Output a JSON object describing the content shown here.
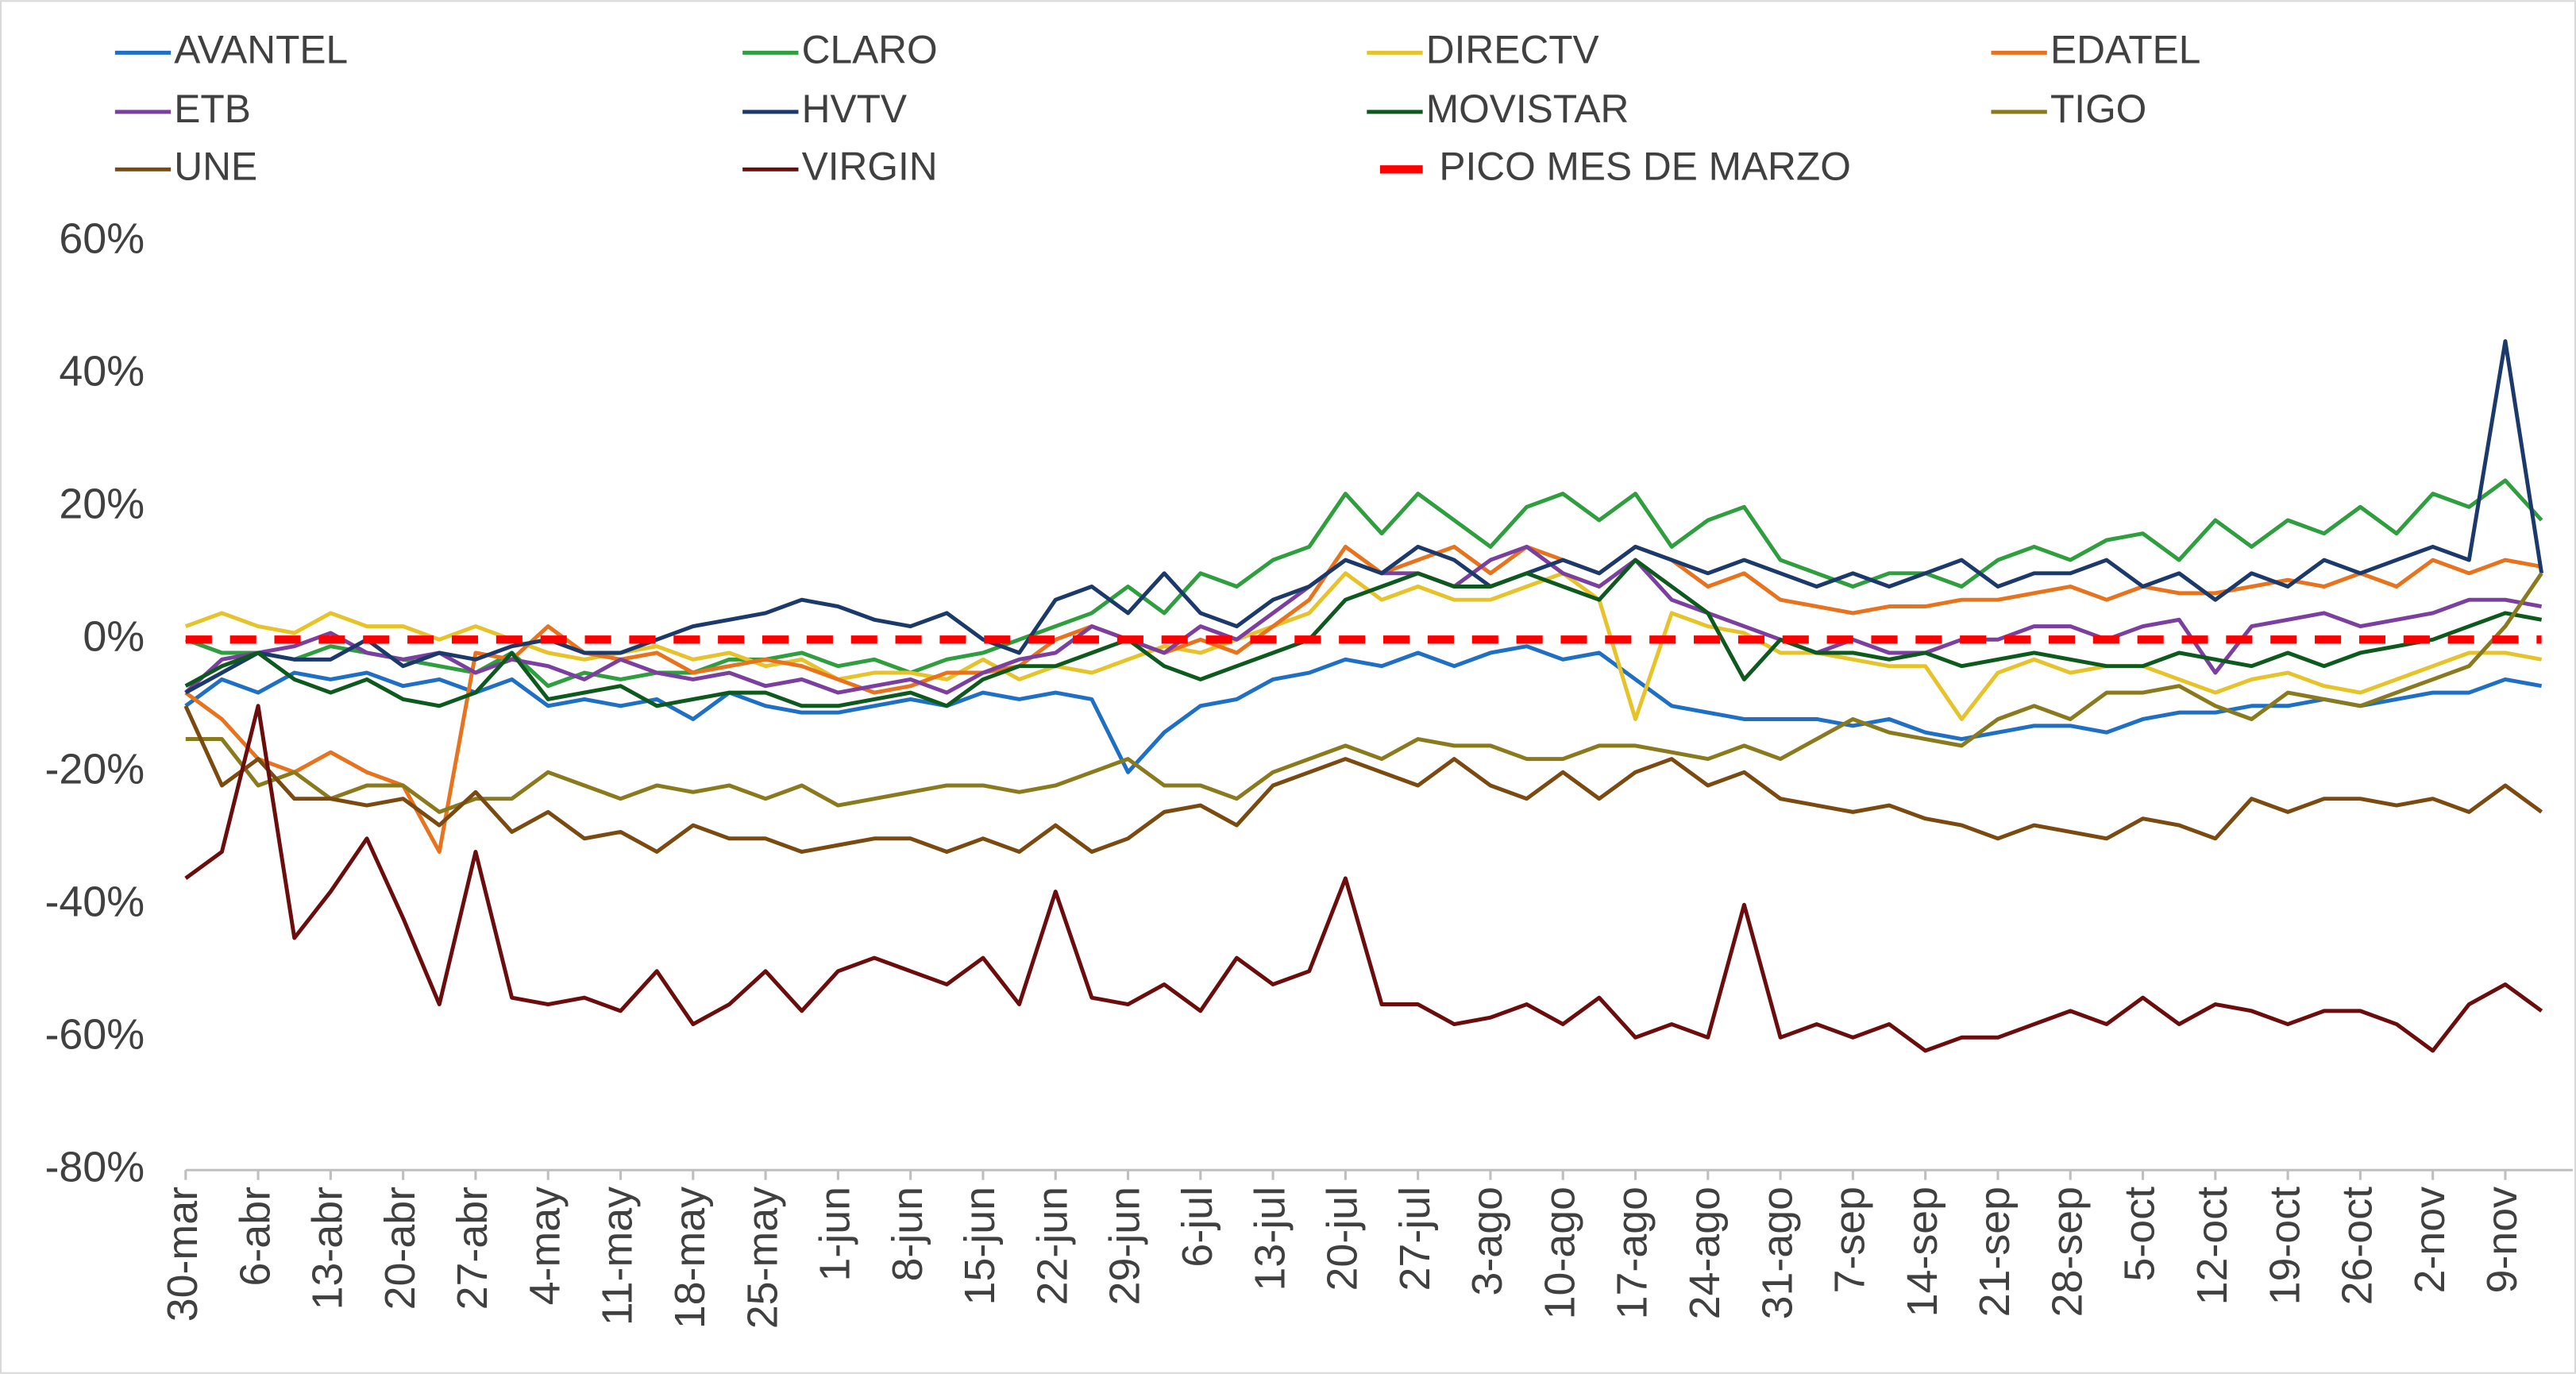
{
  "chart_data": {
    "type": "line",
    "categories": [
      "30-mar",
      null,
      "6-abr",
      null,
      "13-abr",
      null,
      "20-abr",
      null,
      "27-abr",
      null,
      "4-may",
      null,
      "11-may",
      null,
      "18-may",
      null,
      "25-may",
      null,
      "1-jun",
      null,
      "8-jun",
      null,
      "15-jun",
      null,
      "22-jun",
      null,
      "29-jun",
      null,
      "6-jul",
      null,
      "13-jul",
      null,
      "20-jul",
      null,
      "27-jul",
      null,
      "3-ago",
      null,
      "10-ago",
      null,
      "17-ago",
      null,
      "24-ago",
      null,
      "31-ago",
      null,
      "7-sep",
      null,
      "14-sep",
      null,
      "21-sep",
      null,
      "28-sep",
      null,
      "5-oct",
      null,
      "12-oct",
      null,
      "19-oct",
      null,
      "26-oct",
      null,
      "2-nov",
      null,
      "9-nov",
      null
    ],
    "ylim": [
      -80,
      60
    ],
    "yticks": [
      {
        "value": -80,
        "label": "-80%"
      },
      {
        "value": -60,
        "label": "-60%"
      },
      {
        "value": -40,
        "label": "-40%"
      },
      {
        "value": -20,
        "label": "-20%"
      },
      {
        "value": 0,
        "label": "0%"
      },
      {
        "value": 20,
        "label": "20%"
      },
      {
        "value": 40,
        "label": "40%"
      },
      {
        "value": 60,
        "label": "60%"
      }
    ],
    "series": [
      {
        "name": "AVANTEL",
        "color": "#1f6fc5",
        "values": [
          -10,
          -6,
          -8,
          -5,
          -6,
          -5,
          -7,
          -6,
          -8,
          -6,
          -10,
          -9,
          -10,
          -9,
          -12,
          -8,
          -10,
          -11,
          -11,
          -10,
          -9,
          -10,
          -8,
          -9,
          -8,
          -9,
          -20,
          -14,
          -10,
          -9,
          -6,
          -5,
          -3,
          -4,
          -2,
          -4,
          -2,
          -1,
          -3,
          -2,
          -6,
          -10,
          -11,
          -12,
          -12,
          -12,
          -13,
          -12,
          -14,
          -15,
          -14,
          -13,
          -13,
          -14,
          -12,
          -11,
          -11,
          -10,
          -10,
          -9,
          -10,
          -9,
          -8,
          -8,
          -6,
          -7
        ]
      },
      {
        "name": "CLARO",
        "color": "#2e9e3e",
        "values": [
          0,
          -2,
          -2,
          -3,
          -1,
          -2,
          -3,
          -4,
          -5,
          -2,
          -7,
          -5,
          -6,
          -5,
          -5,
          -3,
          -3,
          -2,
          -4,
          -3,
          -5,
          -3,
          -2,
          0,
          2,
          4,
          8,
          4,
          10,
          8,
          12,
          14,
          22,
          16,
          22,
          18,
          14,
          20,
          22,
          18,
          22,
          14,
          18,
          20,
          12,
          10,
          8,
          10,
          10,
          8,
          12,
          14,
          12,
          15,
          16,
          12,
          18,
          14,
          18,
          16,
          20,
          16,
          22,
          20,
          24,
          18
        ]
      },
      {
        "name": "DIRECTV",
        "color": "#e6c32b",
        "values": [
          2,
          4,
          2,
          1,
          4,
          2,
          2,
          0,
          2,
          0,
          -2,
          -3,
          -2,
          -1,
          -3,
          -2,
          -4,
          -3,
          -6,
          -5,
          -5,
          -6,
          -3,
          -6,
          -4,
          -5,
          -3,
          -1,
          -2,
          0,
          2,
          4,
          10,
          6,
          8,
          6,
          6,
          8,
          10,
          6,
          -12,
          4,
          2,
          1,
          -2,
          -2,
          -3,
          -4,
          -4,
          -12,
          -5,
          -3,
          -5,
          -4,
          -4,
          -6,
          -8,
          -6,
          -5,
          -7,
          -8,
          -6,
          -4,
          -2,
          -2,
          -3
        ]
      },
      {
        "name": "EDATEL",
        "color": "#e8731e",
        "values": [
          -8,
          -12,
          -18,
          -20,
          -17,
          -20,
          -22,
          -32,
          -2,
          -3,
          2,
          -2,
          -3,
          -2,
          -5,
          -4,
          -3,
          -4,
          -6,
          -8,
          -7,
          -5,
          -5,
          -4,
          0,
          2,
          0,
          -2,
          0,
          -2,
          2,
          6,
          14,
          10,
          12,
          14,
          10,
          14,
          12,
          10,
          14,
          12,
          8,
          10,
          6,
          5,
          4,
          5,
          5,
          6,
          6,
          7,
          8,
          6,
          8,
          7,
          7,
          8,
          9,
          8,
          10,
          8,
          12,
          10,
          12,
          11
        ]
      },
      {
        "name": "ETB",
        "color": "#7b3fa0",
        "values": [
          -8,
          -3,
          -2,
          -1,
          1,
          -2,
          -3,
          -2,
          -5,
          -3,
          -4,
          -6,
          -3,
          -5,
          -6,
          -5,
          -7,
          -6,
          -8,
          -7,
          -6,
          -8,
          -5,
          -3,
          -2,
          2,
          0,
          -2,
          2,
          0,
          4,
          8,
          12,
          10,
          10,
          8,
          12,
          14,
          10,
          8,
          12,
          6,
          4,
          2,
          0,
          -2,
          0,
          -2,
          -2,
          0,
          0,
          2,
          2,
          0,
          2,
          3,
          -5,
          2,
          3,
          4,
          2,
          3,
          4,
          6,
          6,
          5
        ]
      },
      {
        "name": "HVTV",
        "color": "#1b3a6b",
        "values": [
          -8,
          -5,
          -2,
          -3,
          -3,
          0,
          -4,
          -2,
          -3,
          -1,
          0,
          -2,
          -2,
          0,
          2,
          3,
          4,
          6,
          5,
          3,
          2,
          4,
          0,
          -2,
          6,
          8,
          4,
          10,
          4,
          2,
          6,
          8,
          12,
          10,
          14,
          12,
          8,
          10,
          12,
          10,
          14,
          12,
          10,
          12,
          10,
          8,
          10,
          8,
          10,
          12,
          8,
          10,
          10,
          12,
          8,
          10,
          6,
          10,
          8,
          12,
          10,
          12,
          14,
          12,
          45,
          10
        ]
      },
      {
        "name": "MOVISTAR",
        "color": "#0e5a1e",
        "values": [
          -7,
          -4,
          -2,
          -6,
          -8,
          -6,
          -9,
          -10,
          -8,
          -2,
          -9,
          -8,
          -7,
          -10,
          -9,
          -8,
          -8,
          -10,
          -10,
          -9,
          -8,
          -10,
          -6,
          -4,
          -4,
          -2,
          0,
          -4,
          -6,
          -4,
          -2,
          0,
          6,
          8,
          10,
          8,
          8,
          10,
          8,
          6,
          12,
          8,
          4,
          -6,
          0,
          -2,
          -2,
          -3,
          -2,
          -4,
          -3,
          -2,
          -3,
          -4,
          -4,
          -2,
          -3,
          -4,
          -2,
          -4,
          -2,
          -1,
          0,
          2,
          4,
          3
        ]
      },
      {
        "name": "TIGO",
        "color": "#8a7a1e",
        "values": [
          -15,
          -15,
          -22,
          -20,
          -24,
          -22,
          -22,
          -26,
          -24,
          -24,
          -20,
          -22,
          -24,
          -22,
          -23,
          -22,
          -24,
          -22,
          -25,
          -24,
          -23,
          -22,
          -22,
          -23,
          -22,
          -20,
          -18,
          -22,
          -22,
          -24,
          -20,
          -18,
          -16,
          -18,
          -15,
          -16,
          -16,
          -18,
          -18,
          -16,
          -16,
          -17,
          -18,
          -16,
          -18,
          -15,
          -12,
          -14,
          -15,
          -16,
          -12,
          -10,
          -12,
          -8,
          -8,
          -7,
          -10,
          -12,
          -8,
          -9,
          -10,
          -8,
          -6,
          -4,
          2,
          10
        ]
      },
      {
        "name": "UNE",
        "color": "#7a4a10",
        "values": [
          -10,
          -22,
          -18,
          -24,
          -24,
          -25,
          -24,
          -28,
          -23,
          -29,
          -26,
          -30,
          -29,
          -32,
          -28,
          -30,
          -30,
          -32,
          -31,
          -30,
          -30,
          -32,
          -30,
          -32,
          -28,
          -32,
          -30,
          -26,
          -25,
          -28,
          -22,
          -20,
          -18,
          -20,
          -22,
          -18,
          -22,
          -24,
          -20,
          -24,
          -20,
          -18,
          -22,
          -20,
          -24,
          -25,
          -26,
          -25,
          -27,
          -28,
          -30,
          -28,
          -29,
          -30,
          -27,
          -28,
          -30,
          -24,
          -26,
          -24,
          -24,
          -25,
          -24,
          -26,
          -22,
          -26
        ]
      },
      {
        "name": "VIRGIN",
        "color": "#6b0d0d",
        "values": [
          -36,
          -32,
          -10,
          -45,
          -38,
          -30,
          -42,
          -55,
          -32,
          -54,
          -55,
          -54,
          -56,
          -50,
          -58,
          -55,
          -50,
          -56,
          -50,
          -48,
          -50,
          -52,
          -48,
          -55,
          -38,
          -54,
          -55,
          -52,
          -56,
          -48,
          -52,
          -50,
          -36,
          -55,
          -55,
          -58,
          -57,
          -55,
          -58,
          -54,
          -60,
          -58,
          -60,
          -40,
          -60,
          -58,
          -60,
          -58,
          -62,
          -60,
          -60,
          -58,
          -56,
          -58,
          -54,
          -58,
          -55,
          -56,
          -58,
          -56,
          -56,
          -58,
          -62,
          -55,
          -52,
          -56
        ]
      },
      {
        "name": "PICO MES DE MARZO",
        "color": "#ff0000",
        "dashed": true,
        "values": [
          0,
          0,
          0,
          0,
          0,
          0,
          0,
          0,
          0,
          0,
          0,
          0,
          0,
          0,
          0,
          0,
          0,
          0,
          0,
          0,
          0,
          0,
          0,
          0,
          0,
          0,
          0,
          0,
          0,
          0,
          0,
          0,
          0,
          0,
          0,
          0,
          0,
          0,
          0,
          0,
          0,
          0,
          0,
          0,
          0,
          0,
          0,
          0,
          0,
          0,
          0,
          0,
          0,
          0,
          0,
          0,
          0,
          0,
          0,
          0,
          0,
          0,
          0,
          0,
          0,
          0
        ]
      }
    ]
  }
}
